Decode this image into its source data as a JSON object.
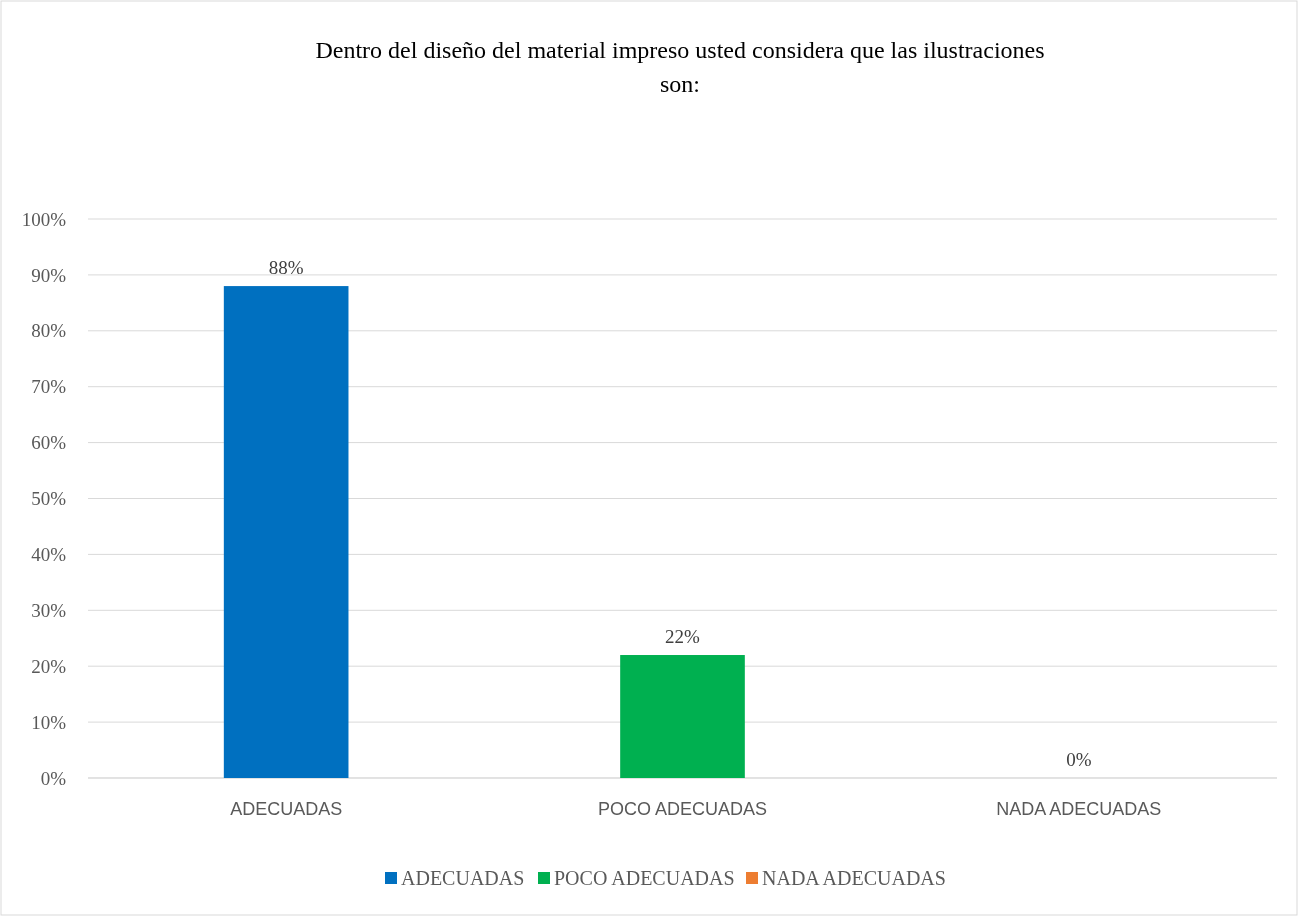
{
  "chart_data": {
    "type": "bar",
    "title": "Dentro del diseño del material impreso usted considera que las ilustraciones son:",
    "categories": [
      "ADECUADAS",
      "POCO ADECUADAS",
      "NADA ADECUADAS"
    ],
    "series": [
      {
        "name": "ADECUADAS",
        "color": "#0070c0",
        "values": [
          88,
          null,
          null
        ],
        "value_labels": [
          "88%",
          null,
          null
        ]
      },
      {
        "name": "POCO ADECUADAS",
        "color": "#00b050",
        "values": [
          null,
          22,
          null
        ],
        "value_labels": [
          null,
          "22%",
          null
        ]
      },
      {
        "name": "NADA ADECUADAS",
        "color": "#ed7d31",
        "values": [
          null,
          null,
          0
        ],
        "value_labels": [
          null,
          null,
          "0%"
        ]
      }
    ],
    "ylim": [
      0,
      100
    ],
    "yticks": [
      {
        "value": 0,
        "label": "0%"
      },
      {
        "value": 10,
        "label": "10%"
      },
      {
        "value": 20,
        "label": "20%"
      },
      {
        "value": 30,
        "label": "30%"
      },
      {
        "value": 40,
        "label": "40%"
      },
      {
        "value": 50,
        "label": "50%"
      },
      {
        "value": 60,
        "label": "60%"
      },
      {
        "value": 70,
        "label": "70%"
      },
      {
        "value": 80,
        "label": "80%"
      },
      {
        "value": 90,
        "label": "90%"
      },
      {
        "value": 100,
        "label": "100%"
      }
    ],
    "grid": "y",
    "legend": "bottom"
  }
}
